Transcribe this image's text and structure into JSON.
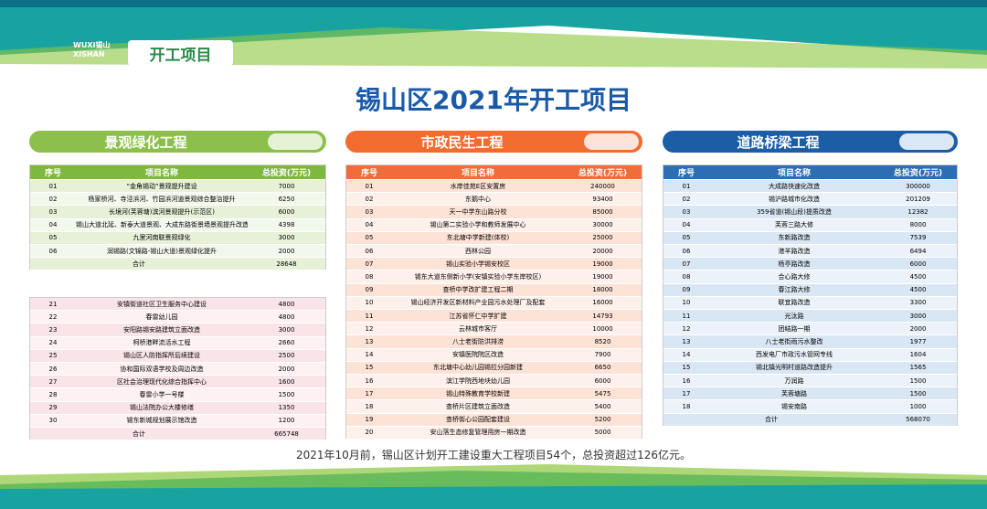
{
  "header": {
    "logo_top": "WUXI锡山",
    "logo_bottom": "XISHAN",
    "tag": "开工项目"
  },
  "title": "锡山区2021年开工项目",
  "sections": [
    {
      "name": "景观绿化工程",
      "columns": [
        "序号",
        "项目名称",
        "总投资(万元)"
      ],
      "tables": [
        {
          "rows": [
            [
              "01",
              "“金角锡动”景观提升建设",
              7000
            ],
            [
              "02",
              "杨家桥河、寺泾浜河、竹园浜河道景观综合整治提升",
              6250
            ],
            [
              "03",
              "长境河(芙蓉塘)滨河景观提升(示范区)",
              6000
            ],
            [
              "04",
              "锡山大道北延、新泰大道景观、大成东路街景墙景观提升改造绿化",
              4398
            ],
            [
              "05",
              "九里河南联景观绿化",
              3000
            ],
            [
              "06",
              "润锡路(文锦路-锡山大道)景观绿化提升",
              2000
            ]
          ],
          "total": {
            "label": "合计",
            "value": 28648
          }
        },
        {
          "rows": [
            [
              "21",
              "安镇街道社区卫生服务中心建设",
              4800
            ],
            [
              "22",
              "春雷幼儿园",
              4800
            ],
            [
              "23",
              "安阳路锡安路建筑立面改造",
              3000
            ],
            [
              "24",
              "柯桥港畔流活水工程",
              2660
            ],
            [
              "25",
              "锡山区人防指挥所后续建设",
              2500
            ],
            [
              "26",
              "协和国际双语学校及周边改造",
              2000
            ],
            [
              "27",
              "区社会治理现代化综合指挥中心",
              1600
            ],
            [
              "28",
              "春雷小学一号楼",
              1500
            ],
            [
              "29",
              "锡山法院办公大楼修缮",
              1350
            ],
            [
              "30",
              "锡东新城规划展示馆改造",
              1200
            ]
          ],
          "total": {
            "label": "合计",
            "value": 665748
          }
        }
      ]
    },
    {
      "name": "市政民生工程",
      "columns": [
        "序号",
        "项目名称",
        "总投资(万元)"
      ],
      "tables": [
        {
          "rows": [
            [
              "01",
              "水岸佳苑E区安置房",
              240000
            ],
            [
              "02",
              "东鹅中心",
              93400
            ],
            [
              "03",
              "天一中学东山路分校",
              85000
            ],
            [
              "04",
              "锡山第二实验小学和教师发展中心",
              30000
            ],
            [
              "05",
              "东北塘中学新建(体校)",
              25000
            ],
            [
              "06",
              "西林公园",
              20000
            ],
            [
              "07",
              "锡山实验小学锡安校区",
              19000
            ],
            [
              "08",
              "锡东大道东侧新小学(安镇实验小学东岸校区)",
              19000
            ],
            [
              "09",
              "查桥中学改扩建工程二期",
              18000
            ],
            [
              "10",
              "锡山经济开发区新材料产业园污水处理厂及配套",
              16000
            ],
            [
              "11",
              "江苏省怀仁中学扩建",
              14793
            ],
            [
              "12",
              "云林城市客厅",
              10000
            ],
            [
              "13",
              "八士老街防洪排涝",
              8520
            ],
            [
              "14",
              "安镇医院院区改造",
              7900
            ],
            [
              "15",
              "东北塘中心幼儿园锡拉分园新建",
              6650
            ],
            [
              "16",
              "滨江学院西地块幼儿园",
              6000
            ],
            [
              "17",
              "锡山特殊教育学校新建",
              5475
            ],
            [
              "18",
              "查桥片区建筑立面改造",
              5400
            ],
            [
              "19",
              "查桥街心公园配套建设",
              5200
            ],
            [
              "20",
              "安山落生态修复管理用房一期改造",
              5000
            ]
          ]
        }
      ]
    },
    {
      "name": "道路桥梁工程",
      "columns": [
        "序号",
        "项目名称",
        "总投资(万元)"
      ],
      "tables": [
        {
          "rows": [
            [
              "01",
              "大成路快速化改造",
              300000
            ],
            [
              "02",
              "锡沪路城市化改造",
              201209
            ],
            [
              "03",
              "359省道(锡山段)提质改造",
              12382
            ],
            [
              "04",
              "芙蓉三路大修",
              8000
            ],
            [
              "05",
              "东新路改造",
              7539
            ],
            [
              "06",
              "港羊路改造",
              6494
            ],
            [
              "07",
              "杨亭路改造",
              6000
            ],
            [
              "08",
              "合心路大修",
              4500
            ],
            [
              "09",
              "春江路大修",
              4500
            ],
            [
              "10",
              "联宜路改造",
              3300
            ],
            [
              "11",
              "光汰路",
              3000
            ],
            [
              "12",
              "团结路一期",
              2000
            ],
            [
              "13",
              "八士老街雨污水整改",
              1977
            ],
            [
              "14",
              "西发电厂市政污水管网专线",
              1604
            ],
            [
              "15",
              "锡北镇光明村道路改造提升",
              1565
            ],
            [
              "16",
              "万润路",
              1500
            ],
            [
              "17",
              "芙蓉塘路",
              1500
            ],
            [
              "18",
              "锡安南路",
              1000
            ]
          ],
          "total": {
            "label": "合计",
            "value": 568070
          }
        }
      ]
    }
  ],
  "footer": "2021年10月前，锡山区计划开工建设重大工程项目54个，总投资超过126亿元。"
}
